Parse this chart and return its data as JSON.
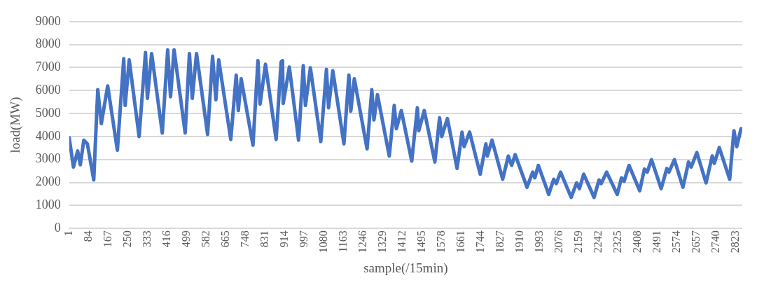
{
  "chart_data": {
    "type": "line",
    "xlabel": "sample(/15min)",
    "ylabel": "load(MW)",
    "xlim": [
      1,
      2850
    ],
    "xticks": [
      1,
      84,
      167,
      250,
      333,
      416,
      499,
      582,
      665,
      748,
      831,
      914,
      997,
      1080,
      1163,
      1246,
      1329,
      1412,
      1495,
      1578,
      1661,
      1744,
      1827,
      1910,
      1993,
      2076,
      2159,
      2242,
      2325,
      2408,
      2491,
      2574,
      2657,
      2740,
      2823
    ],
    "ylim": [
      0,
      9000
    ],
    "yticks": [
      0,
      1000,
      2000,
      3000,
      4000,
      5000,
      6000,
      7000,
      8000,
      9000
    ],
    "grid": "y",
    "legend": false,
    "marker": "none",
    "line_style": "solid",
    "series": [
      {
        "color": "#4472c4",
        "x": [
          1,
          19,
          37,
          48,
          63,
          78,
          105,
          122,
          137,
          164,
          205,
          232,
          238,
          255,
          297,
          324,
          332,
          350,
          395,
          418,
          430,
          445,
          492,
          510,
          522,
          540,
          587,
          608,
          622,
          634,
          685,
          708,
          717,
          729,
          779,
          800,
          809,
          832,
          877,
          898,
          904,
          907,
          933,
          972,
          992,
          1001,
          1022,
          1066,
          1090,
          1099,
          1117,
          1164,
          1185,
          1193,
          1208,
          1262,
          1282,
          1291,
          1306,
          1356,
          1377,
          1386,
          1407,
          1451,
          1475,
          1481,
          1504,
          1549,
          1569,
          1578,
          1602,
          1643,
          1664,
          1673,
          1696,
          1741,
          1765,
          1771,
          1791,
          1836,
          1860,
          1874,
          1889,
          1939,
          1963,
          1972,
          1987,
          2031,
          2052,
          2063,
          2081,
          2126,
          2149,
          2161,
          2179,
          2223,
          2244,
          2253,
          2276,
          2321,
          2339,
          2350,
          2371,
          2416,
          2436,
          2448,
          2466,
          2507,
          2531,
          2540,
          2563,
          2599,
          2623,
          2634,
          2658,
          2697,
          2723,
          2732,
          2753,
          2797,
          2815,
          2827,
          2845
        ],
        "values": [
          3950,
          2670,
          3370,
          2770,
          3840,
          3680,
          2110,
          6040,
          4560,
          6200,
          3400,
          7390,
          5350,
          7330,
          4000,
          7650,
          5660,
          7610,
          4150,
          7770,
          5730,
          7770,
          4150,
          7610,
          5660,
          7610,
          4090,
          7490,
          5600,
          7330,
          3870,
          6670,
          5130,
          6510,
          3620,
          7300,
          5410,
          7140,
          3870,
          7240,
          7300,
          5440,
          7020,
          3840,
          7080,
          5350,
          6990,
          3780,
          6920,
          5250,
          6860,
          3680,
          6670,
          5100,
          6510,
          3460,
          6040,
          4720,
          5820,
          3150,
          5350,
          4340,
          5130,
          2930,
          5250,
          4250,
          5130,
          2890,
          4810,
          4000,
          4780,
          2610,
          4190,
          3560,
          4190,
          2360,
          3680,
          3150,
          3840,
          2140,
          3150,
          2740,
          3210,
          1790,
          2450,
          2200,
          2740,
          1480,
          2140,
          1950,
          2450,
          1350,
          1980,
          1730,
          2360,
          1350,
          2110,
          1950,
          2450,
          1480,
          2200,
          2050,
          2740,
          1640,
          2580,
          2450,
          2990,
          1730,
          2610,
          2450,
          2990,
          1790,
          2890,
          2670,
          3300,
          1980,
          3150,
          2830,
          3520,
          2140,
          4250,
          3560,
          4340
        ]
      }
    ]
  }
}
